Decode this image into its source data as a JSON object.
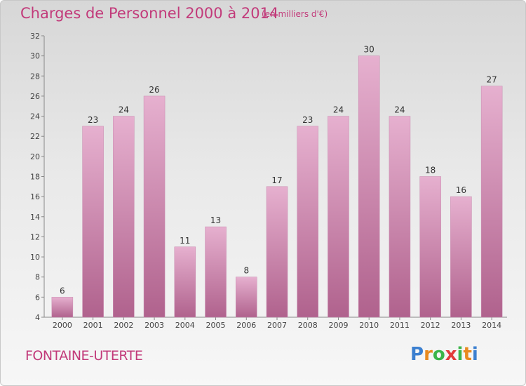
{
  "title": "Charges de Personnel 2000 à 2014",
  "subtitle": "(en milliers d'€)",
  "commune": "FONTAINE-UTERTE",
  "brand": {
    "letters": [
      "P",
      "r",
      "o",
      "x",
      "i",
      "t",
      "i"
    ],
    "colors": [
      "#3b7fd0",
      "#e98a1f",
      "#3bb54a",
      "#e23b3b",
      "#3bb54a",
      "#e98a1f",
      "#3b7fd0"
    ]
  },
  "colors": {
    "accent": "#c23a7a",
    "bar_top": "#e2a8c9",
    "bar_bottom": "#b35f8d"
  },
  "chart_data": {
    "type": "bar",
    "categories": [
      "2000",
      "2001",
      "2002",
      "2003",
      "2004",
      "2005",
      "2006",
      "2007",
      "2008",
      "2009",
      "2010",
      "2011",
      "2012",
      "2013",
      "2014"
    ],
    "values": [
      6,
      23,
      24,
      26,
      11,
      13,
      8,
      17,
      23,
      24,
      30,
      24,
      18,
      16,
      27
    ],
    "ylim": [
      4,
      32
    ],
    "yticks": [
      4,
      6,
      8,
      10,
      12,
      14,
      16,
      18,
      20,
      22,
      24,
      26,
      28,
      30,
      32
    ],
    "grid": false,
    "data_labels": true
  }
}
